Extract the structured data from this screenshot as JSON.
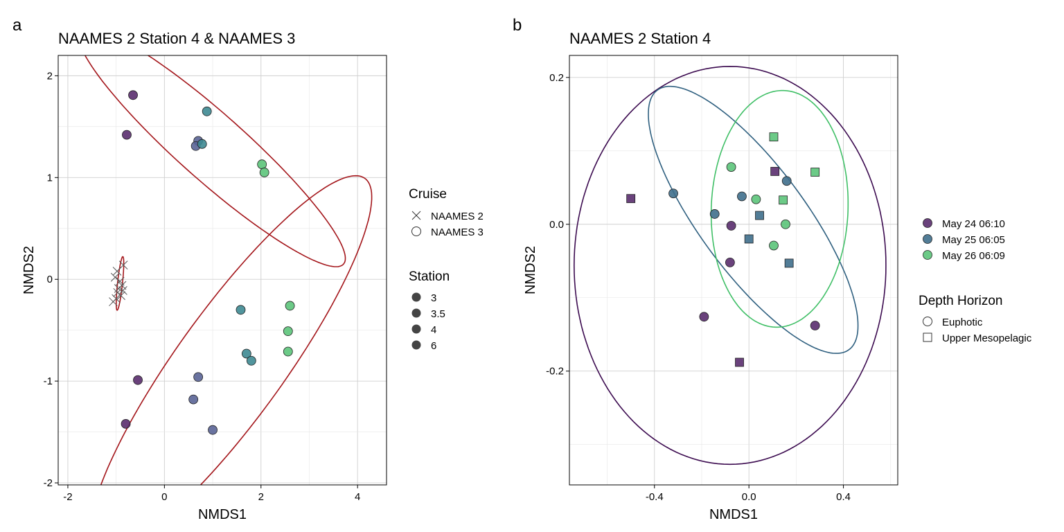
{
  "chart_data": [
    {
      "panel_label": "a",
      "type": "scatter",
      "title": "NAAMES 2 Station 4 & NAAMES 3",
      "xlabel": "NMDS1",
      "ylabel": "NMDS2",
      "xlim": [
        -2.2,
        4.6
      ],
      "ylim": [
        -2.02,
        2.2
      ],
      "xticks": [
        -2,
        0,
        2,
        4
      ],
      "yticks": [
        -2,
        -1,
        0,
        1,
        2
      ],
      "xtick_labels": [
        "-2",
        "0",
        "2",
        "4"
      ],
      "ytick_labels": [
        "-2",
        "-1",
        "0",
        "1",
        "2"
      ],
      "grid": true,
      "legend": {
        "position": "right",
        "cruise_title": "Cruise",
        "cruise_entries": [
          "NAAMES 2",
          "NAAMES 3"
        ],
        "station_title": "Station",
        "station_entries": [
          "3",
          "3.5",
          "4",
          "6"
        ]
      },
      "colors": {
        "station_3": "#5a2d6e",
        "station_3_5": "#5a6496",
        "station_4": "#3e8a92",
        "station_6": "#5cc47a",
        "ellipse": "#a31419",
        "naames2_marker": "#555555"
      },
      "points": [
        {
          "x": -0.65,
          "y": 1.81,
          "cruise": "NAAMES 3",
          "station": "3"
        },
        {
          "x": -0.78,
          "y": 1.42,
          "cruise": "NAAMES 3",
          "station": "3"
        },
        {
          "x": 0.88,
          "y": 1.65,
          "cruise": "NAAMES 3",
          "station": "4"
        },
        {
          "x": 0.7,
          "y": 1.36,
          "cruise": "NAAMES 3",
          "station": "3.5"
        },
        {
          "x": 0.65,
          "y": 1.31,
          "cruise": "NAAMES 3",
          "station": "3.5"
        },
        {
          "x": 0.78,
          "y": 1.33,
          "cruise": "NAAMES 3",
          "station": "4"
        },
        {
          "x": 2.02,
          "y": 1.13,
          "cruise": "NAAMES 3",
          "station": "6"
        },
        {
          "x": 2.07,
          "y": 1.05,
          "cruise": "NAAMES 3",
          "station": "6"
        },
        {
          "x": 1.58,
          "y": -0.3,
          "cruise": "NAAMES 3",
          "station": "4"
        },
        {
          "x": 2.6,
          "y": -0.26,
          "cruise": "NAAMES 3",
          "station": "6"
        },
        {
          "x": 2.56,
          "y": -0.51,
          "cruise": "NAAMES 3",
          "station": "6"
        },
        {
          "x": 2.56,
          "y": -0.71,
          "cruise": "NAAMES 3",
          "station": "6"
        },
        {
          "x": 1.7,
          "y": -0.73,
          "cruise": "NAAMES 3",
          "station": "4"
        },
        {
          "x": 1.8,
          "y": -0.8,
          "cruise": "NAAMES 3",
          "station": "4"
        },
        {
          "x": -0.55,
          "y": -0.99,
          "cruise": "NAAMES 3",
          "station": "3"
        },
        {
          "x": 0.7,
          "y": -0.96,
          "cruise": "NAAMES 3",
          "station": "3.5"
        },
        {
          "x": 0.6,
          "y": -1.18,
          "cruise": "NAAMES 3",
          "station": "3.5"
        },
        {
          "x": -0.8,
          "y": -1.42,
          "cruise": "NAAMES 3",
          "station": "3"
        },
        {
          "x": 1.0,
          "y": -1.48,
          "cruise": "NAAMES 3",
          "station": "3.5"
        },
        {
          "x": -0.85,
          "y": 0.14,
          "cruise": "NAAMES 2",
          "station": "4"
        },
        {
          "x": -0.98,
          "y": 0.08,
          "cruise": "NAAMES 2",
          "station": "4"
        },
        {
          "x": -1.02,
          "y": 0.02,
          "cruise": "NAAMES 2",
          "station": "4"
        },
        {
          "x": -0.92,
          "y": -0.02,
          "cruise": "NAAMES 2",
          "station": "4"
        },
        {
          "x": -0.88,
          "y": -0.06,
          "cruise": "NAAMES 2",
          "station": "4"
        },
        {
          "x": -0.95,
          "y": -0.09,
          "cruise": "NAAMES 2",
          "station": "4"
        },
        {
          "x": -0.86,
          "y": -0.11,
          "cruise": "NAAMES 2",
          "station": "4"
        },
        {
          "x": -0.97,
          "y": -0.13,
          "cruise": "NAAMES 2",
          "station": "4"
        },
        {
          "x": -0.9,
          "y": -0.16,
          "cruise": "NAAMES 2",
          "station": "4"
        },
        {
          "x": -1.0,
          "y": -0.19,
          "cruise": "NAAMES 2",
          "station": "4"
        },
        {
          "x": -1.06,
          "y": -0.22,
          "cruise": "NAAMES 2",
          "station": "4"
        }
      ],
      "ellipses": [
        {
          "cx": 0.98,
          "cy": 1.3,
          "rx": 2.98,
          "ry": 0.4,
          "angle_deg": -22
        },
        {
          "cx": 1.38,
          "cy": -0.83,
          "rx": 3.37,
          "ry": 0.74,
          "angle_deg": 31
        },
        {
          "cx": -0.92,
          "cy": -0.04,
          "rx": 0.27,
          "ry": 0.05,
          "angle_deg": 77
        }
      ]
    },
    {
      "panel_label": "b",
      "type": "scatter",
      "title": "NAAMES 2 Station 4",
      "xlabel": "NMDS1",
      "ylabel": "NMDS2",
      "xlim": [
        -0.76,
        0.63
      ],
      "ylim": [
        -0.355,
        0.23
      ],
      "xticks": [
        -0.4,
        0.0,
        0.4
      ],
      "yticks": [
        -0.2,
        0.0,
        0.2
      ],
      "xtick_labels": [
        "-0.4",
        "0.0",
        "0.4"
      ],
      "ytick_labels": [
        "-0.2",
        "0.0",
        "0.2"
      ],
      "grid": true,
      "legend": {
        "position": "right",
        "date_entries": [
          "May 24 06:10",
          "May 25 06:05",
          "May 26 06:09"
        ],
        "depth_title": "Depth Horizon",
        "depth_entries": [
          "Euphotic",
          "Upper Mesopelagic"
        ]
      },
      "colors": {
        "May 24 06:10": "#5a2d6e",
        "May 25 06:05": "#3f6f8c",
        "May 26 06:09": "#5cc47a",
        "ellipse_may24": "#3b0a4f",
        "ellipse_may25": "#2e5f7f",
        "ellipse_may26": "#3fbf66"
      },
      "points": [
        {
          "x": -0.5,
          "y": 0.035,
          "date": "May 24 06:10",
          "depth": "Upper Mesopelagic"
        },
        {
          "x": 0.11,
          "y": 0.072,
          "date": "May 24 06:10",
          "depth": "Upper Mesopelagic"
        },
        {
          "x": -0.04,
          "y": -0.188,
          "date": "May 24 06:10",
          "depth": "Upper Mesopelagic"
        },
        {
          "x": -0.075,
          "y": -0.002,
          "date": "May 24 06:10",
          "depth": "Euphotic"
        },
        {
          "x": -0.08,
          "y": -0.052,
          "date": "May 24 06:10",
          "depth": "Euphotic"
        },
        {
          "x": -0.19,
          "y": -0.126,
          "date": "May 24 06:10",
          "depth": "Euphotic"
        },
        {
          "x": 0.28,
          "y": -0.138,
          "date": "May 24 06:10",
          "depth": "Euphotic"
        },
        {
          "x": -0.32,
          "y": 0.042,
          "date": "May 25 06:05",
          "depth": "Euphotic"
        },
        {
          "x": -0.145,
          "y": 0.014,
          "date": "May 25 06:05",
          "depth": "Euphotic"
        },
        {
          "x": -0.03,
          "y": 0.038,
          "date": "May 25 06:05",
          "depth": "Euphotic"
        },
        {
          "x": 0.16,
          "y": 0.059,
          "date": "May 25 06:05",
          "depth": "Euphotic"
        },
        {
          "x": 0.045,
          "y": 0.012,
          "date": "May 25 06:05",
          "depth": "Upper Mesopelagic"
        },
        {
          "x": 0.0,
          "y": -0.02,
          "date": "May 25 06:05",
          "depth": "Upper Mesopelagic"
        },
        {
          "x": 0.17,
          "y": -0.053,
          "date": "May 25 06:05",
          "depth": "Upper Mesopelagic"
        },
        {
          "x": 0.105,
          "y": 0.119,
          "date": "May 26 06:09",
          "depth": "Upper Mesopelagic"
        },
        {
          "x": 0.28,
          "y": 0.071,
          "date": "May 26 06:09",
          "depth": "Upper Mesopelagic"
        },
        {
          "x": 0.145,
          "y": 0.033,
          "date": "May 26 06:09",
          "depth": "Upper Mesopelagic"
        },
        {
          "x": -0.075,
          "y": 0.078,
          "date": "May 26 06:09",
          "depth": "Euphotic"
        },
        {
          "x": 0.03,
          "y": 0.034,
          "date": "May 26 06:09",
          "depth": "Euphotic"
        },
        {
          "x": 0.155,
          "y": 0.0,
          "date": "May 26 06:09",
          "depth": "Euphotic"
        },
        {
          "x": 0.105,
          "y": -0.029,
          "date": "May 26 06:09",
          "depth": "Euphotic"
        }
      ],
      "ellipses": [
        {
          "date": "May 24 06:10",
          "cx": -0.08,
          "cy": -0.056,
          "rx": 0.66,
          "ry": 0.271,
          "angle_deg": 0
        },
        {
          "date": "May 25 06:05",
          "cx": 0.018,
          "cy": 0.006,
          "rx": 0.468,
          "ry": 0.105,
          "angle_deg": -19
        },
        {
          "date": "May 26 06:09",
          "cx": 0.13,
          "cy": 0.021,
          "rx": 0.29,
          "ry": 0.161,
          "angle_deg": 2
        }
      ]
    }
  ]
}
